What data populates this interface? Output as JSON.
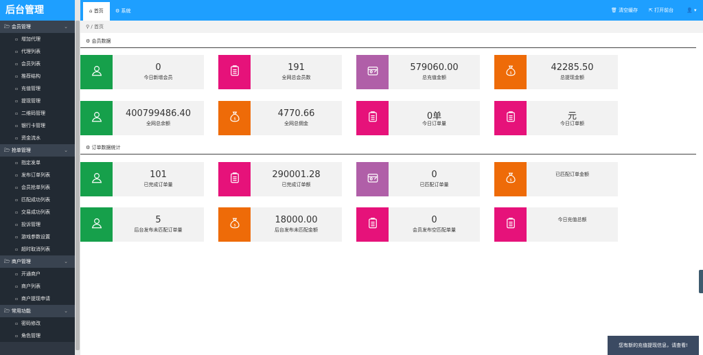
{
  "app": {
    "logo": "后台管理"
  },
  "sidebar": {
    "groups": [
      {
        "label": "会员管理",
        "items": [
          "增加代理",
          "代理列表",
          "会员列表",
          "推荐结构",
          "充值管理",
          "提现管理",
          "二维码管理",
          "银行卡管理",
          "资金流水"
        ]
      },
      {
        "label": "抢单管理",
        "items": [
          "指定发单",
          "发布订单列表",
          "会员抢单列表",
          "匹配成功列表",
          "交易成功列表",
          "投诉管理",
          "游戏参数设置",
          "超时取消列表"
        ]
      },
      {
        "label": "商户管理",
        "items": [
          "开通商户",
          "商户列表",
          "商户提现申请"
        ]
      },
      {
        "label": "常用功能",
        "items": [
          "密码修改",
          "角色管理"
        ]
      }
    ]
  },
  "header": {
    "tabs": [
      "首页",
      "系统"
    ],
    "clear_cache": "清空缓存",
    "open_front": "打开前台",
    "user_icon": "user-icon"
  },
  "breadcrumb": {
    "home": "首页",
    "sep": "/"
  },
  "sections": [
    "会员数据",
    "订单数据统计"
  ],
  "cards": [
    {
      "value": "0",
      "label": "今日新增会员",
      "color": "#16a04b",
      "icon": "user-icon"
    },
    {
      "value": "191",
      "label": "全网总会员数",
      "color": "#e6127a",
      "icon": "clipboard-icon"
    },
    {
      "value": "579060.00",
      "label": "总充值金额",
      "color": "#b05fa8",
      "icon": "wallet-icon"
    },
    {
      "value": "42285.50",
      "label": "总提现金额",
      "color": "#ee6b08",
      "icon": "money-bag-icon"
    },
    {
      "value": "400799486.40",
      "label": "全网总余额",
      "color": "#16a04b",
      "icon": "user-icon"
    },
    {
      "value": "4770.66",
      "label": "全网总佣金",
      "color": "#ee6b08",
      "icon": "money-bag-icon"
    },
    {
      "value": "0单",
      "label": "今日订单量",
      "color": "#e6127a",
      "icon": "clipboard-icon"
    },
    {
      "value": "元",
      "label": "今日订单额",
      "color": "#e6127a",
      "icon": "clipboard-icon"
    },
    {
      "value": "101",
      "label": "已完成订单量",
      "color": "#16a04b",
      "icon": "user-icon"
    },
    {
      "value": "290001.28",
      "label": "已完成订单额",
      "color": "#e6127a",
      "icon": "clipboard-icon"
    },
    {
      "value": "0",
      "label": "已匹配订单量",
      "color": "#b05fa8",
      "icon": "wallet-icon"
    },
    {
      "value": "",
      "label": "已匹配订单金额",
      "color": "#ee6b08",
      "icon": "money-bag-icon"
    },
    {
      "value": "5",
      "label": "后台发布未匹配订单量",
      "color": "#16a04b",
      "icon": "user-icon"
    },
    {
      "value": "18000.00",
      "label": "后台发布未匹配金额",
      "color": "#ee6b08",
      "icon": "money-bag-icon"
    },
    {
      "value": "0",
      "label": "会员发布空匹配单量",
      "color": "#e6127a",
      "icon": "clipboard-icon"
    },
    {
      "value": "",
      "label": "今日充值总额",
      "color": "#e6127a",
      "icon": "clipboard-icon"
    }
  ],
  "notice": "您有新的充值提现信息，请查看!"
}
